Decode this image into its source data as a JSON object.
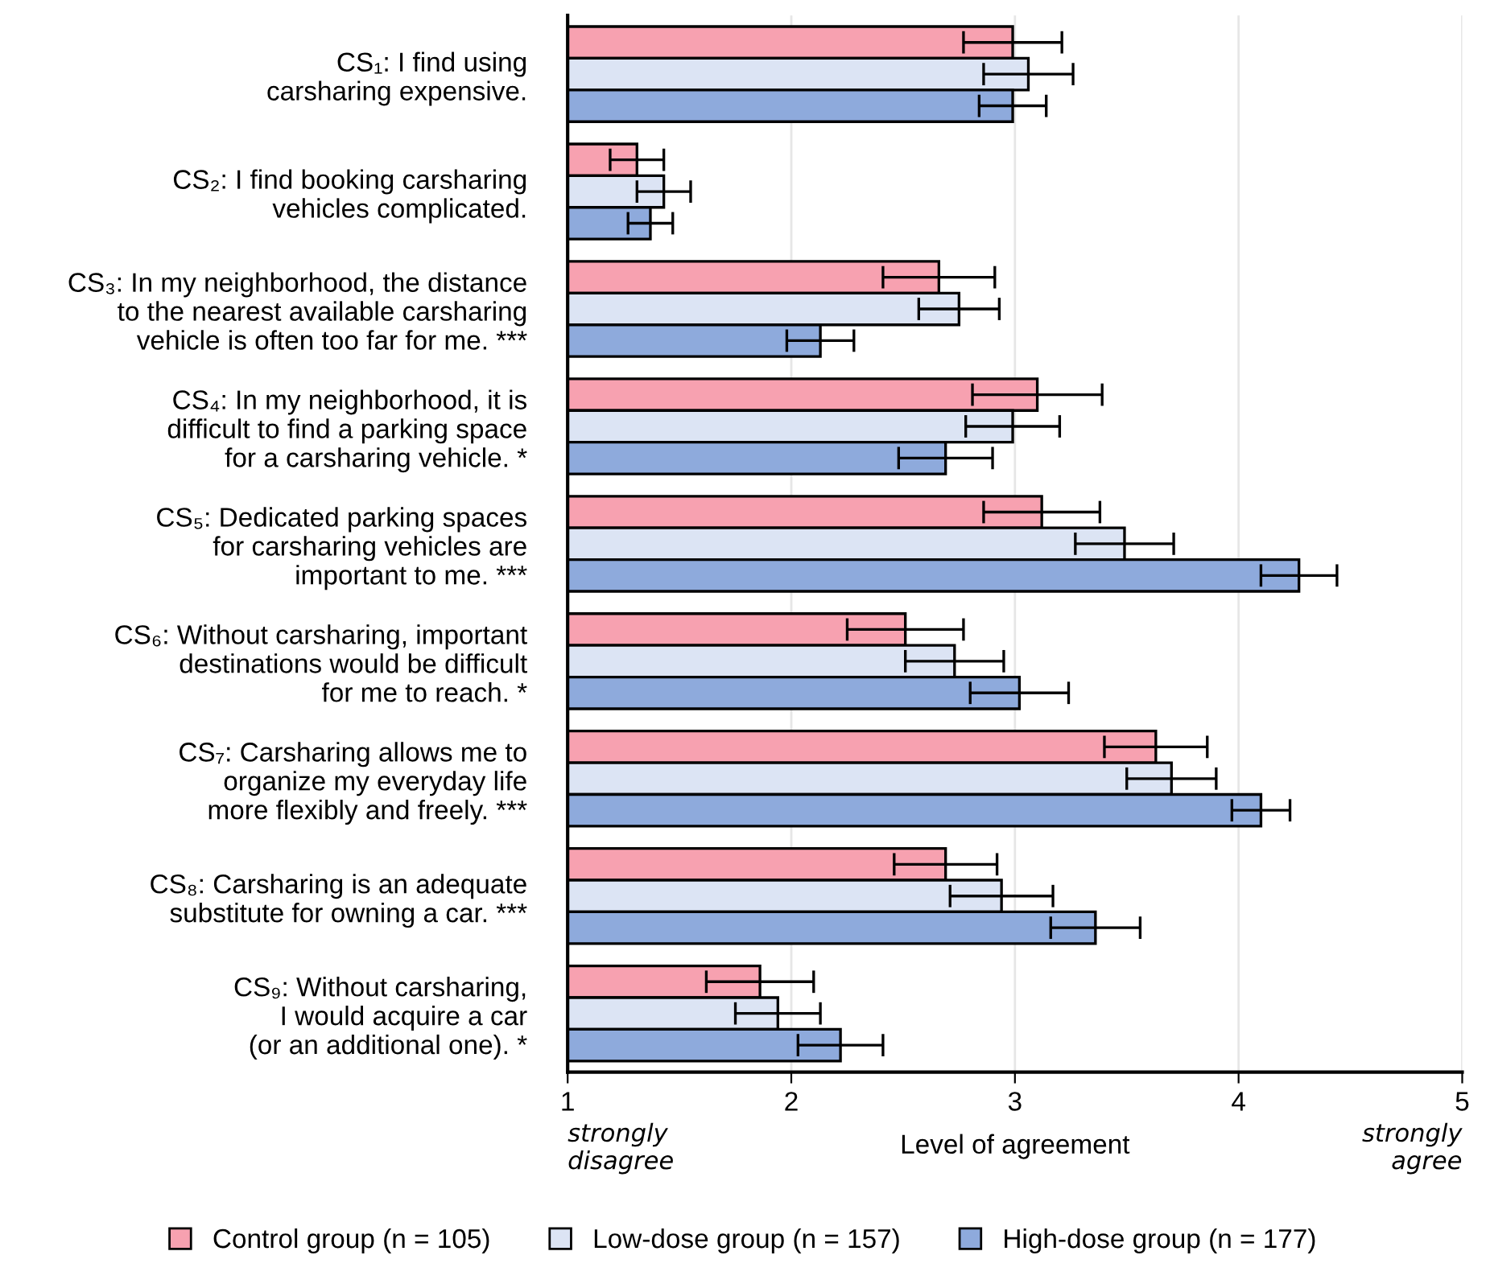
{
  "chart_data": {
    "type": "bar",
    "orientation": "horizontal",
    "xlabel": "Level of agreement",
    "categories": [
      "CS₁: I find using\ncarsharing expensive.",
      "CS₂: I find booking carsharing\nvehicles complicated.",
      "CS₃: In my neighborhood, the distance\nto the nearest available carsharing\nvehicle is often too far for me. ***",
      "CS₄: In my neighborhood, it is\ndifficult to find a parking space\nfor a carsharing vehicle. *",
      "CS₅: Dedicated parking spaces\nfor carsharing vehicles are\nimportant to me. ***",
      "CS₆: Without carsharing, important\ndestinations would be difficult\nfor me to reach. *",
      "CS₇: Carsharing allows me to\norganize my everyday life\nmore flexibly and freely. ***",
      "CS₈: Carsharing is an adequate\nsubstitute for owning a car. ***",
      "CS₉: Without carsharing,\nI would acquire a car\n(or an additional one). *"
    ],
    "series": [
      {
        "name": "Control group (n = 105)",
        "color": "#f7a1b0",
        "values": [
          2.99,
          1.31,
          2.66,
          3.1,
          3.12,
          2.51,
          3.63,
          2.69,
          1.86
        ],
        "errors": [
          0.22,
          0.12,
          0.25,
          0.29,
          0.26,
          0.26,
          0.23,
          0.23,
          0.24
        ]
      },
      {
        "name": "Low-dose group (n = 157)",
        "color": "#dce4f4",
        "values": [
          3.06,
          1.43,
          2.75,
          2.99,
          3.49,
          2.73,
          3.7,
          2.94,
          1.94
        ],
        "errors": [
          0.2,
          0.12,
          0.18,
          0.21,
          0.22,
          0.22,
          0.2,
          0.23,
          0.19
        ]
      },
      {
        "name": "High-dose group (n = 177)",
        "color": "#8eaadc",
        "values": [
          2.99,
          1.37,
          2.13,
          2.69,
          4.27,
          3.02,
          4.1,
          3.36,
          2.22
        ],
        "errors": [
          0.15,
          0.1,
          0.15,
          0.21,
          0.17,
          0.22,
          0.13,
          0.2,
          0.19
        ]
      }
    ],
    "xlim": [
      1,
      5
    ],
    "xticks": [
      1,
      2,
      3,
      4,
      5
    ],
    "grid": "x",
    "legend": "bottom",
    "annotations": [
      "strongly\ndisagree",
      "strongly\nagree"
    ]
  }
}
